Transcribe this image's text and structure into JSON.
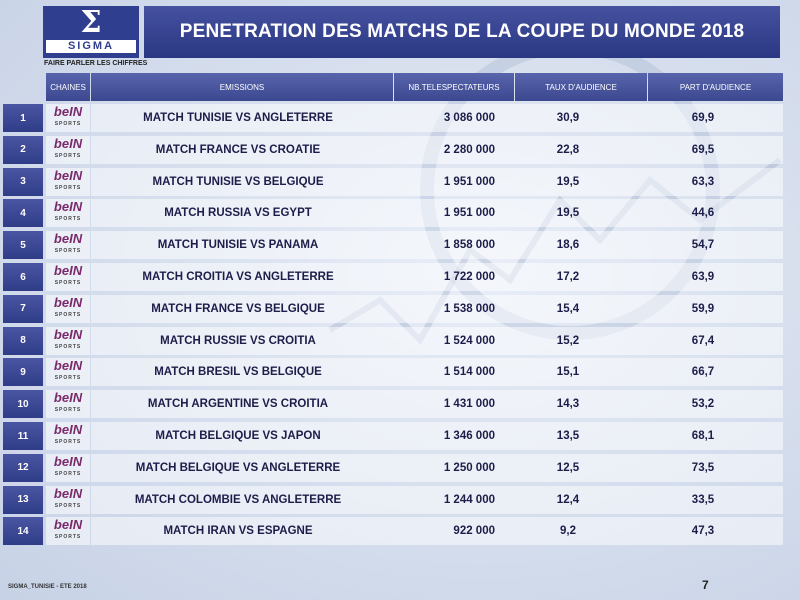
{
  "logo": {
    "symbol": "Σ",
    "text": "SIGMA"
  },
  "title": "PENETRATION DES MATCHS DE LA COUPE DU MONDE  2018",
  "subtitle": "FAIRE PARLER LES CHIFFRES",
  "headers": {
    "chaines": "CHAINES",
    "emissions": "EMISSIONS",
    "nb": "NB.TELESPECTATEURS",
    "taux": "TAUX D'AUDIENCE",
    "part": "PART D'AUDIENCE"
  },
  "channel": {
    "name": "beIN",
    "sub": "SPORTS"
  },
  "rows": [
    {
      "rank": "1",
      "emission": "MATCH TUNISIE VS ANGLETERRE",
      "nb": "3 086 000",
      "taux": "30,9",
      "part": "69,9"
    },
    {
      "rank": "2",
      "emission": "MATCH FRANCE VS CROATIE",
      "nb": "2 280 000",
      "taux": "22,8",
      "part": "69,5"
    },
    {
      "rank": "3",
      "emission": "MATCH TUNISIE VS BELGIQUE",
      "nb": "1 951 000",
      "taux": "19,5",
      "part": "63,3"
    },
    {
      "rank": "4",
      "emission": "MATCH RUSSIA VS EGYPT",
      "nb": "1 951 000",
      "taux": "19,5",
      "part": "44,6"
    },
    {
      "rank": "5",
      "emission": "MATCH TUNISIE VS PANAMA",
      "nb": "1 858 000",
      "taux": "18,6",
      "part": "54,7"
    },
    {
      "rank": "6",
      "emission": "MATCH CROITIA VS ANGLETERRE",
      "nb": "1 722 000",
      "taux": "17,2",
      "part": "63,9"
    },
    {
      "rank": "7",
      "emission": "MATCH FRANCE VS BELGIQUE",
      "nb": "1 538 000",
      "taux": "15,4",
      "part": "59,9"
    },
    {
      "rank": "8",
      "emission": "MATCH RUSSIE VS CROITIA",
      "nb": "1 524 000",
      "taux": "15,2",
      "part": "67,4"
    },
    {
      "rank": "9",
      "emission": "MATCH BRESIL VS BELGIQUE",
      "nb": "1 514 000",
      "taux": "15,1",
      "part": "66,7"
    },
    {
      "rank": "10",
      "emission": "MATCH ARGENTINE VS CROITIA",
      "nb": "1 431 000",
      "taux": "14,3",
      "part": "53,2"
    },
    {
      "rank": "11",
      "emission": "MATCH BELGIQUE VS JAPON",
      "nb": "1 346 000",
      "taux": "13,5",
      "part": "68,1"
    },
    {
      "rank": "12",
      "emission": "MATCH BELGIQUE VS ANGLETERRE",
      "nb": "1 250 000",
      "taux": "12,5",
      "part": "73,5"
    },
    {
      "rank": "13",
      "emission": "MATCH COLOMBIE VS ANGLETERRE",
      "nb": "1 244 000",
      "taux": "12,4",
      "part": "33,5"
    },
    {
      "rank": "14",
      "emission": "MATCH IRAN VS ESPAGNE",
      "nb": "922 000",
      "taux": "9,2",
      "part": "47,3"
    }
  ],
  "footer": "SIGMA_TUNISIE - ETE 2018",
  "page_number": "7"
}
